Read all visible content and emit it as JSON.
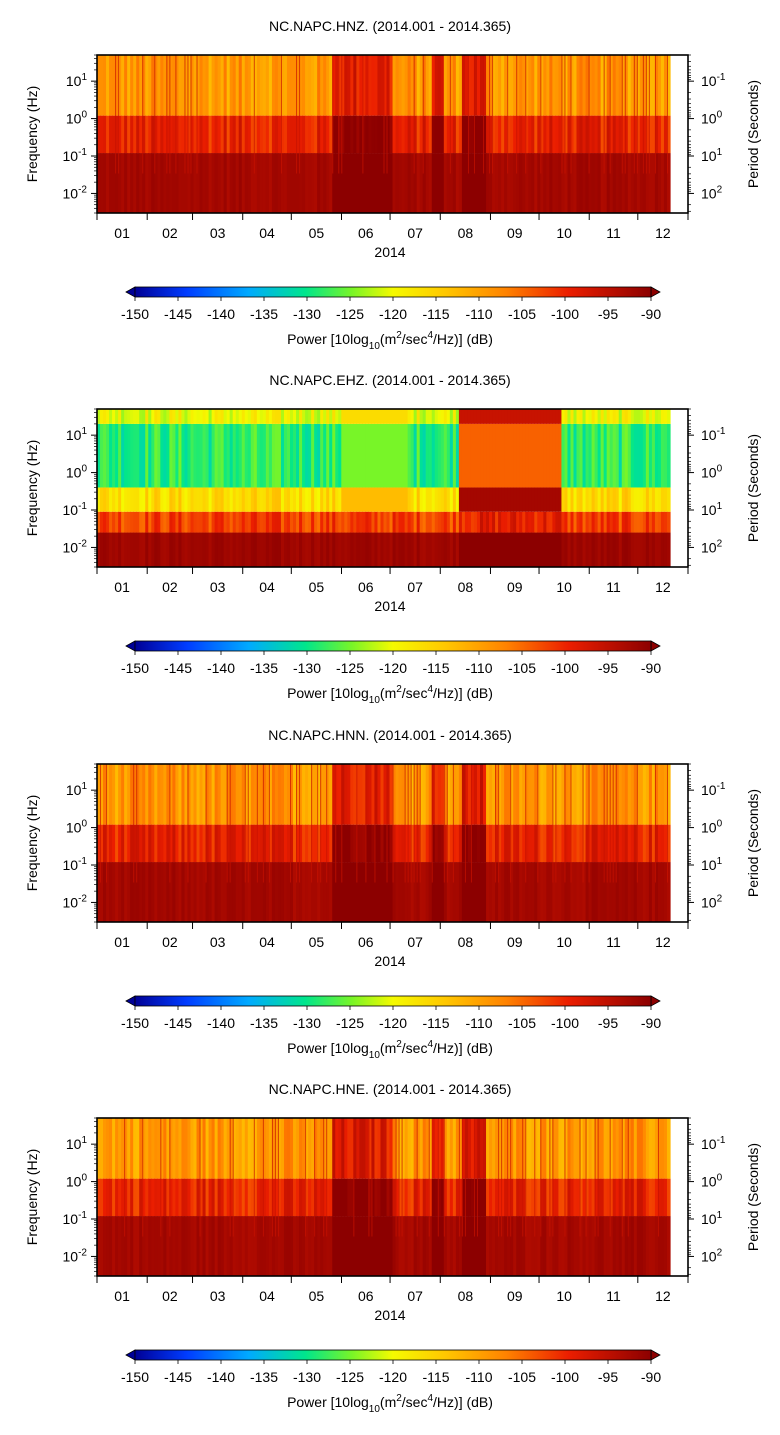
{
  "chart_data": [
    {
      "type": "heatmap",
      "title": "NC.NAPC.HNZ. (2014.001 - 2014.365)",
      "xlabel": "2014",
      "ylabel": "Frequency (Hz)",
      "ylabel_right": "Period (Seconds)",
      "x_ticks": [
        "01",
        "02",
        "03",
        "04",
        "05",
        "06",
        "07",
        "08",
        "09",
        "10",
        "11",
        "12"
      ],
      "y_ticks": [
        {
          "base": "10",
          "exp": "1"
        },
        {
          "base": "10",
          "exp": "0"
        },
        {
          "base": "10",
          "exp": "-1"
        },
        {
          "base": "10",
          "exp": "-2"
        }
      ],
      "y2_ticks": [
        {
          "base": "10",
          "exp": "-1"
        },
        {
          "base": "10",
          "exp": "0"
        },
        {
          "base": "10",
          "exp": "1"
        },
        {
          "base": "10",
          "exp": "2"
        }
      ],
      "ylim": [
        0.003,
        50
      ],
      "y_scale": "log",
      "colorbar": {
        "ticks": [
          "-150",
          "-145",
          "-140",
          "-135",
          "-130",
          "-125",
          "-120",
          "-115",
          "-110",
          "-105",
          "-100",
          "-95",
          "-90"
        ],
        "range": [
          -150,
          -90
        ],
        "label_pre": "Power [10log",
        "label_sub": "10",
        "label_mid": "(m",
        "label_sup1": "2",
        "label_mid2": "/sec",
        "label_sup2": "4",
        "label_post": "/Hz)] (dB)"
      }
    },
    {
      "type": "heatmap",
      "title": "NC.NAPC.EHZ. (2014.001 - 2014.365)",
      "xlabel": "2014",
      "ylabel": "Frequency (Hz)",
      "ylabel_right": "Period (Seconds)",
      "x_ticks": [
        "01",
        "02",
        "03",
        "04",
        "05",
        "06",
        "07",
        "08",
        "09",
        "10",
        "11",
        "12"
      ],
      "y_ticks": [
        {
          "base": "10",
          "exp": "1"
        },
        {
          "base": "10",
          "exp": "0"
        },
        {
          "base": "10",
          "exp": "-1"
        },
        {
          "base": "10",
          "exp": "-2"
        }
      ],
      "y2_ticks": [
        {
          "base": "10",
          "exp": "-1"
        },
        {
          "base": "10",
          "exp": "0"
        },
        {
          "base": "10",
          "exp": "1"
        },
        {
          "base": "10",
          "exp": "2"
        }
      ],
      "ylim": [
        0.003,
        50
      ],
      "y_scale": "log",
      "colorbar": {
        "ticks": [
          "-150",
          "-145",
          "-140",
          "-135",
          "-130",
          "-125",
          "-120",
          "-115",
          "-110",
          "-105",
          "-100",
          "-95",
          "-90"
        ],
        "range": [
          -150,
          -90
        ],
        "label_pre": "Power [10log",
        "label_sub": "10",
        "label_mid": "(m",
        "label_sup1": "2",
        "label_mid2": "/sec",
        "label_sup2": "4",
        "label_post": "/Hz)] (dB)"
      }
    },
    {
      "type": "heatmap",
      "title": "NC.NAPC.HNN. (2014.001 - 2014.365)",
      "xlabel": "2014",
      "ylabel": "Frequency (Hz)",
      "ylabel_right": "Period (Seconds)",
      "x_ticks": [
        "01",
        "02",
        "03",
        "04",
        "05",
        "06",
        "07",
        "08",
        "09",
        "10",
        "11",
        "12"
      ],
      "y_ticks": [
        {
          "base": "10",
          "exp": "1"
        },
        {
          "base": "10",
          "exp": "0"
        },
        {
          "base": "10",
          "exp": "-1"
        },
        {
          "base": "10",
          "exp": "-2"
        }
      ],
      "y2_ticks": [
        {
          "base": "10",
          "exp": "-1"
        },
        {
          "base": "10",
          "exp": "0"
        },
        {
          "base": "10",
          "exp": "1"
        },
        {
          "base": "10",
          "exp": "2"
        }
      ],
      "ylim": [
        0.003,
        50
      ],
      "y_scale": "log",
      "colorbar": {
        "ticks": [
          "-150",
          "-145",
          "-140",
          "-135",
          "-130",
          "-125",
          "-120",
          "-115",
          "-110",
          "-105",
          "-100",
          "-95",
          "-90"
        ],
        "range": [
          -150,
          -90
        ],
        "label_pre": "Power [10log",
        "label_sub": "10",
        "label_mid": "(m",
        "label_sup1": "2",
        "label_mid2": "/sec",
        "label_sup2": "4",
        "label_post": "/Hz)] (dB)"
      }
    },
    {
      "type": "heatmap",
      "title": "NC.NAPC.HNE. (2014.001 - 2014.365)",
      "xlabel": "2014",
      "ylabel": "Frequency (Hz)",
      "ylabel_right": "Period (Seconds)",
      "x_ticks": [
        "01",
        "02",
        "03",
        "04",
        "05",
        "06",
        "07",
        "08",
        "09",
        "10",
        "11",
        "12"
      ],
      "y_ticks": [
        {
          "base": "10",
          "exp": "1"
        },
        {
          "base": "10",
          "exp": "0"
        },
        {
          "base": "10",
          "exp": "-1"
        },
        {
          "base": "10",
          "exp": "-2"
        }
      ],
      "y2_ticks": [
        {
          "base": "10",
          "exp": "-1"
        },
        {
          "base": "10",
          "exp": "0"
        },
        {
          "base": "10",
          "exp": "1"
        },
        {
          "base": "10",
          "exp": "2"
        }
      ],
      "ylim": [
        0.003,
        50
      ],
      "y_scale": "log",
      "colorbar": {
        "ticks": [
          "-150",
          "-145",
          "-140",
          "-135",
          "-130",
          "-125",
          "-120",
          "-115",
          "-110",
          "-105",
          "-100",
          "-95",
          "-90"
        ],
        "range": [
          -150,
          -90
        ],
        "label_pre": "Power [10log",
        "label_sub": "10",
        "label_mid": "(m",
        "label_sup1": "2",
        "label_mid2": "/sec",
        "label_sup2": "4",
        "label_post": "/Hz)] (dB)"
      }
    }
  ]
}
